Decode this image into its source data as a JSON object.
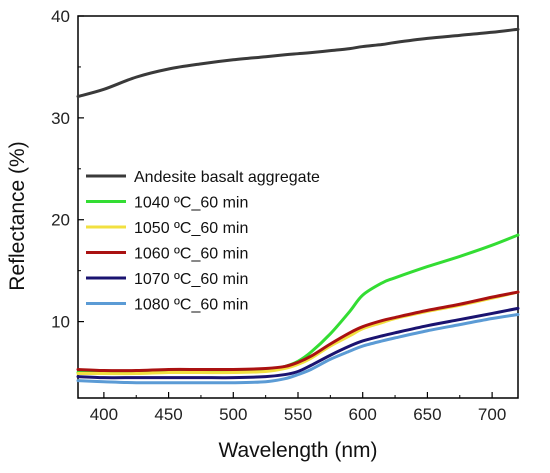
{
  "chart_data": {
    "type": "line",
    "title": "",
    "xlabel": "Wavelength (nm)",
    "ylabel": "Reflectance (%)",
    "xlim": [
      380,
      720
    ],
    "ylim": [
      2.5,
      40
    ],
    "xticks": [
      400,
      450,
      500,
      550,
      600,
      650,
      700
    ],
    "yticks": [
      10,
      20,
      30,
      40
    ],
    "x_minor_step": 25,
    "y_minor_step": 5,
    "grid": false,
    "legend_position": "middle-left",
    "x": [
      380,
      400,
      425,
      450,
      475,
      500,
      525,
      540,
      550,
      560,
      575,
      590,
      600,
      615,
      625,
      650,
      675,
      700,
      720
    ],
    "series": [
      {
        "name": "Andesite basalt aggregate",
        "color": "#3a3a3a",
        "values": [
          32.1,
          32.8,
          34.0,
          34.8,
          35.3,
          35.7,
          36.0,
          36.2,
          36.3,
          36.4,
          36.6,
          36.8,
          37.0,
          37.2,
          37.4,
          37.8,
          38.1,
          38.4,
          38.7
        ]
      },
      {
        "name": "1040 ºC_60 min",
        "color": "#33dd33",
        "values": [
          5.0,
          5.0,
          5.0,
          5.1,
          5.1,
          5.1,
          5.2,
          5.6,
          6.1,
          7.0,
          8.8,
          11.0,
          12.6,
          13.8,
          14.3,
          15.4,
          16.4,
          17.5,
          18.5
        ]
      },
      {
        "name": "1050 ºC_60 min",
        "color": "#f2e040",
        "values": [
          4.9,
          4.9,
          4.9,
          5.0,
          5.0,
          5.0,
          5.1,
          5.4,
          5.8,
          6.4,
          7.6,
          8.6,
          9.3,
          9.9,
          10.3,
          11.0,
          11.6,
          12.3,
          12.9
        ]
      },
      {
        "name": "1060 ºC_60 min",
        "color": "#aa1111",
        "values": [
          5.3,
          5.2,
          5.2,
          5.3,
          5.3,
          5.3,
          5.4,
          5.6,
          6.0,
          6.6,
          7.8,
          8.9,
          9.5,
          10.1,
          10.4,
          11.1,
          11.7,
          12.4,
          12.9
        ]
      },
      {
        "name": "1070 ºC_60 min",
        "color": "#1a1370",
        "values": [
          4.6,
          4.5,
          4.5,
          4.5,
          4.5,
          4.5,
          4.6,
          4.8,
          5.1,
          5.7,
          6.7,
          7.6,
          8.1,
          8.6,
          8.9,
          9.6,
          10.2,
          10.8,
          11.3
        ]
      },
      {
        "name": "1080 ºC_60 min",
        "color": "#5b9bd5",
        "values": [
          4.2,
          4.1,
          4.0,
          4.0,
          4.0,
          4.0,
          4.1,
          4.4,
          4.8,
          5.3,
          6.3,
          7.1,
          7.6,
          8.1,
          8.4,
          9.1,
          9.7,
          10.3,
          10.7
        ]
      }
    ]
  }
}
